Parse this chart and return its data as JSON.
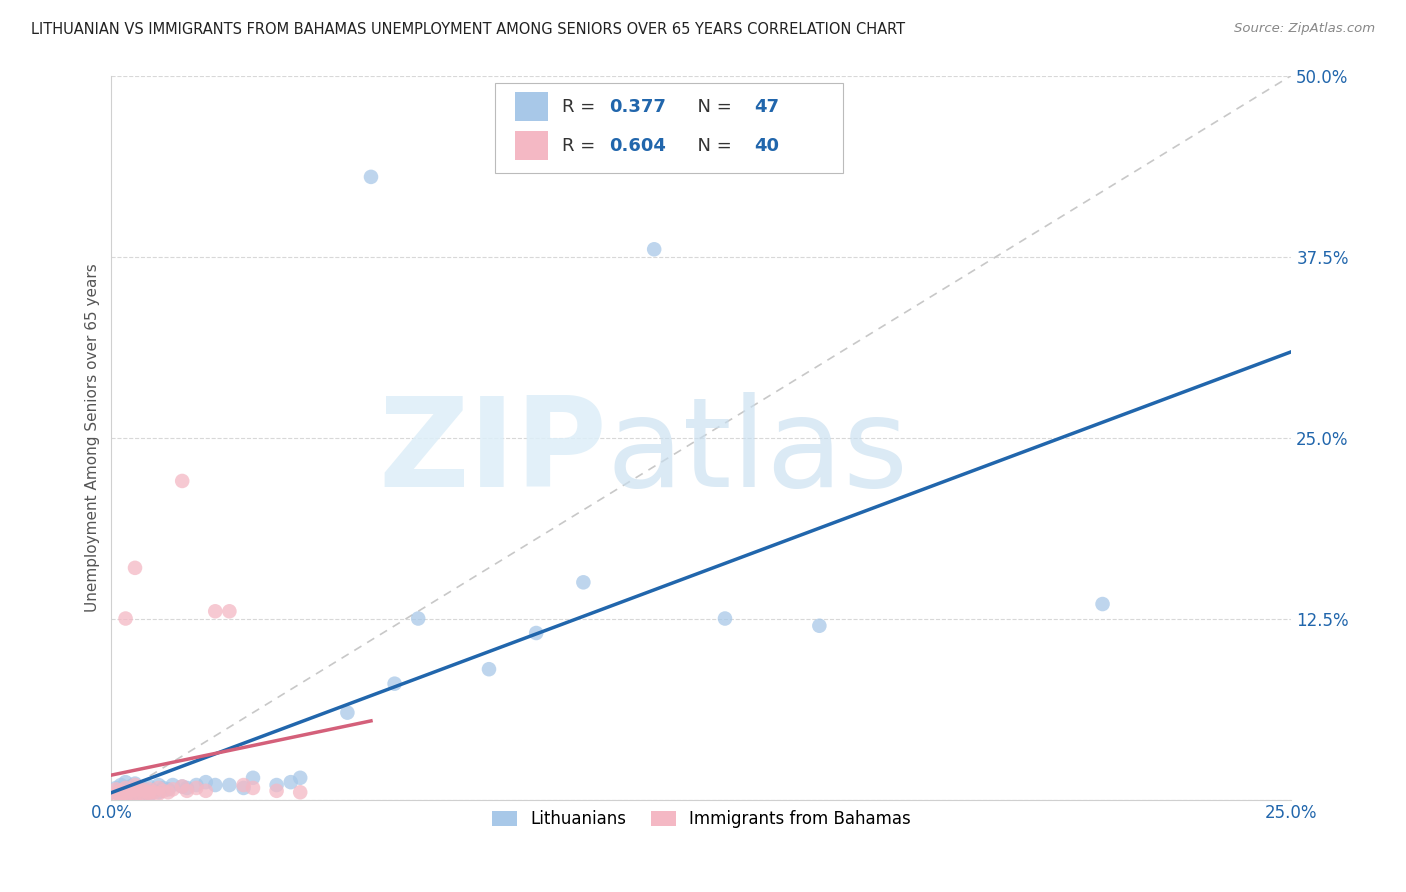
{
  "title": "LITHUANIAN VS IMMIGRANTS FROM BAHAMAS UNEMPLOYMENT AMONG SENIORS OVER 65 YEARS CORRELATION CHART",
  "source": "Source: ZipAtlas.com",
  "ylabel": "Unemployment Among Seniors over 65 years",
  "xlim": [
    0.0,
    0.25
  ],
  "ylim": [
    0.0,
    0.5
  ],
  "R_blue": 0.377,
  "N_blue": 47,
  "R_pink": 0.604,
  "N_pink": 40,
  "blue_color": "#a8c8e8",
  "pink_color": "#f4b8c4",
  "blue_line_color": "#2166ac",
  "pink_line_color": "#d4607a",
  "diag_color": "#c8c8c8",
  "watermark_zip": "ZIP",
  "watermark_atlas": "atlas",
  "bottom_legend_blue": "Lithuanians",
  "bottom_legend_pink": "Immigrants from Bahamas",
  "blue_x": [
    0.001,
    0.001,
    0.002,
    0.002,
    0.002,
    0.003,
    0.003,
    0.003,
    0.004,
    0.004,
    0.005,
    0.005,
    0.005,
    0.006,
    0.006,
    0.007,
    0.007,
    0.008,
    0.008,
    0.009,
    0.01,
    0.01,
    0.011,
    0.012,
    0.013,
    0.015,
    0.016,
    0.018,
    0.02,
    0.022,
    0.025,
    0.028,
    0.03,
    0.035,
    0.038,
    0.04,
    0.05,
    0.06,
    0.065,
    0.08,
    0.09,
    0.1,
    0.13,
    0.15,
    0.055,
    0.115,
    0.21
  ],
  "blue_y": [
    0.005,
    0.008,
    0.003,
    0.006,
    0.01,
    0.002,
    0.007,
    0.012,
    0.004,
    0.009,
    0.003,
    0.006,
    0.011,
    0.005,
    0.008,
    0.004,
    0.007,
    0.003,
    0.009,
    0.006,
    0.005,
    0.01,
    0.008,
    0.007,
    0.01,
    0.009,
    0.008,
    0.01,
    0.012,
    0.01,
    0.01,
    0.008,
    0.015,
    0.01,
    0.012,
    0.015,
    0.06,
    0.08,
    0.125,
    0.09,
    0.115,
    0.15,
    0.125,
    0.12,
    0.43,
    0.38,
    0.135
  ],
  "pink_x": [
    0.001,
    0.001,
    0.001,
    0.002,
    0.002,
    0.002,
    0.003,
    0.003,
    0.003,
    0.004,
    0.004,
    0.005,
    0.005,
    0.005,
    0.006,
    0.006,
    0.007,
    0.007,
    0.008,
    0.008,
    0.009,
    0.01,
    0.01,
    0.011,
    0.012,
    0.013,
    0.015,
    0.016,
    0.018,
    0.02,
    0.022,
    0.025,
    0.028,
    0.03,
    0.035,
    0.04,
    0.015,
    0.005,
    0.003,
    0.008
  ],
  "pink_y": [
    0.003,
    0.005,
    0.007,
    0.002,
    0.004,
    0.006,
    0.002,
    0.005,
    0.008,
    0.003,
    0.006,
    0.003,
    0.007,
    0.01,
    0.004,
    0.008,
    0.003,
    0.006,
    0.004,
    0.007,
    0.005,
    0.004,
    0.008,
    0.006,
    0.005,
    0.007,
    0.009,
    0.006,
    0.008,
    0.006,
    0.13,
    0.13,
    0.01,
    0.008,
    0.006,
    0.005,
    0.22,
    0.16,
    0.125,
    0.005
  ]
}
